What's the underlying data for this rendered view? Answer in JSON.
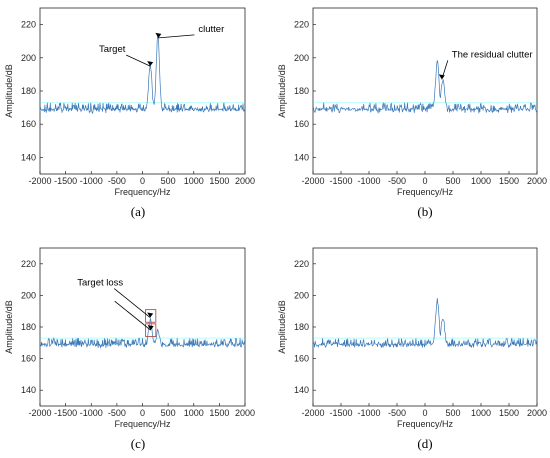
{
  "colors": {
    "line": "#3a78b8",
    "axis": "#262626",
    "target_box": "#b05050",
    "highlight": "#00ffff"
  },
  "chart_data": [
    {
      "type": "line",
      "panel_label": "(a)",
      "xlabel": "Frequency/Hz",
      "ylabel": "Amplitude/dB",
      "xlim": [
        -2000,
        2000
      ],
      "ylim": [
        130,
        230
      ],
      "xticks": [
        -2000,
        -1500,
        -1000,
        -500,
        0,
        500,
        1000,
        1500,
        2000
      ],
      "yticks": [
        140,
        160,
        180,
        200,
        220
      ],
      "noise_floor": 168,
      "peaks": [
        {
          "x": 150,
          "y": 196
        },
        {
          "x": 300,
          "y": 213
        }
      ],
      "annotations": [
        {
          "text": "Target",
          "tip_x": 150,
          "tip_y": 195
        },
        {
          "text": "clutter",
          "tip_x": 310,
          "tip_y": 212
        }
      ],
      "boxes": [],
      "seed": 11
    },
    {
      "type": "line",
      "panel_label": "(b)",
      "xlabel": "Frequency/Hz",
      "ylabel": "Amplitude/dB",
      "xlim": [
        -2000,
        2000
      ],
      "ylim": [
        130,
        230
      ],
      "xticks": [
        -2000,
        -1500,
        -1000,
        -500,
        0,
        500,
        1000,
        1500,
        2000
      ],
      "yticks": [
        140,
        160,
        180,
        200,
        220
      ],
      "noise_floor": 168,
      "peaks": [
        {
          "x": 220,
          "y": 197
        },
        {
          "x": 320,
          "y": 187
        }
      ],
      "annotations": [
        {
          "text": "The residual clutter",
          "tip_x": 300,
          "tip_y": 187
        }
      ],
      "boxes": [],
      "seed": 23
    },
    {
      "type": "line",
      "panel_label": "(c)",
      "xlabel": "Frequency/Hz",
      "ylabel": "Amplitude/dB",
      "xlim": [
        -2000,
        2000
      ],
      "ylim": [
        130,
        230
      ],
      "xticks": [
        -2000,
        -1500,
        -1000,
        -500,
        0,
        500,
        1000,
        1500,
        2000
      ],
      "yticks": [
        140,
        160,
        180,
        200,
        220
      ],
      "noise_floor": 168,
      "peaks": [
        {
          "x": 150,
          "y": 185
        },
        {
          "x": 300,
          "y": 178
        }
      ],
      "annotations": [
        {
          "text": "Target loss",
          "tip_x": 150,
          "tip_y": 186
        },
        {
          "text": "",
          "tip_x": 160,
          "tip_y": 178
        }
      ],
      "boxes": [
        {
          "x0": 60,
          "x1": 260,
          "y0": 183,
          "y1": 191
        },
        {
          "x0": 60,
          "x1": 260,
          "y0": 174,
          "y1": 182
        }
      ],
      "seed": 37
    },
    {
      "type": "line",
      "panel_label": "(d)",
      "xlabel": "Frequency/Hz",
      "ylabel": "Amplitude/dB",
      "xlim": [
        -2000,
        2000
      ],
      "ylim": [
        130,
        230
      ],
      "xticks": [
        -2000,
        -1500,
        -1000,
        -500,
        0,
        500,
        1000,
        1500,
        2000
      ],
      "yticks": [
        140,
        160,
        180,
        200,
        220
      ],
      "noise_floor": 168,
      "peaks": [
        {
          "x": 220,
          "y": 197
        },
        {
          "x": 320,
          "y": 186
        }
      ],
      "annotations": [],
      "boxes": [],
      "seed": 53
    }
  ]
}
